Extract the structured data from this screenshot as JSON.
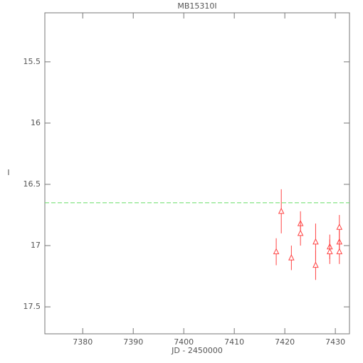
{
  "chart_data": {
    "type": "scatter",
    "title": "MB15310I",
    "x_label": "JD - 2450000",
    "y_label": "I",
    "xlim": [
      7372.5,
      7432.8
    ],
    "xticks": [
      7380,
      7390,
      7400,
      7410,
      7420,
      7430
    ],
    "ylim": [
      15.1,
      17.72
    ],
    "yticks": [
      15.5,
      16.0,
      16.5,
      17.0,
      17.5
    ],
    "y_inverted": true,
    "series": [
      {
        "color": "#ff4444",
        "x": [
          7418.3,
          7419.3,
          7421.3,
          7423.1,
          7423.1,
          7426.1,
          7426.1,
          7428.9,
          7428.9,
          7430.8,
          7430.8,
          7430.8
        ],
        "values": [
          17.05,
          16.72,
          17.1,
          16.82,
          16.9,
          16.97,
          17.16,
          17.01,
          17.05,
          16.85,
          16.97,
          17.05
        ],
        "errors": [
          0.11,
          0.18,
          0.1,
          0.1,
          0.1,
          0.15,
          0.12,
          0.1,
          0.1,
          0.1,
          0.1,
          0.1
        ]
      }
    ],
    "reference_line": {
      "value": 16.65,
      "color": "#66dd66"
    }
  }
}
